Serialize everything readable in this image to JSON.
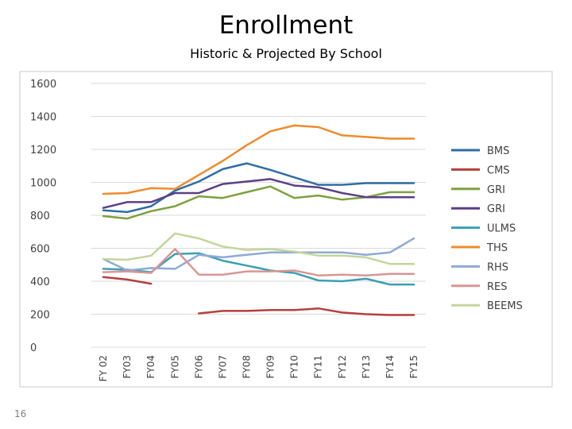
{
  "slide": {
    "title": "Enrollment",
    "subtitle": "Historic & Projected By School",
    "page_number": "16"
  },
  "chart_data": {
    "type": "line",
    "title": "",
    "xlabel": "",
    "ylabel": "",
    "ylim": [
      0,
      1600
    ],
    "yticks": [
      0,
      200,
      400,
      600,
      800,
      1000,
      1200,
      1400,
      1600
    ],
    "grid": true,
    "legend": "right",
    "categories": [
      "FY 02",
      "FY03",
      "FY04",
      "FY05",
      "FY06",
      "FY07",
      "FY08",
      "FY09",
      "FY10",
      "FY11",
      "FY12",
      "FY13",
      "FY14",
      "FY15"
    ],
    "series": [
      {
        "name": "BMS",
        "color": "#2e6da4",
        "values": [
          830,
          820,
          855,
          950,
          1005,
          1080,
          1115,
          1075,
          1030,
          985,
          985,
          995,
          995,
          995
        ]
      },
      {
        "name": "CMS",
        "color": "#b3403d",
        "values": [
          425,
          410,
          385,
          null,
          205,
          220,
          220,
          225,
          225,
          235,
          210,
          200,
          195,
          195
        ]
      },
      {
        "name": "GRI",
        "color": "#7ea13e",
        "values": [
          795,
          780,
          825,
          855,
          915,
          905,
          940,
          975,
          905,
          920,
          895,
          910,
          940,
          940
        ]
      },
      {
        "name": "GRI",
        "color": "#5c3f86",
        "values": [
          845,
          880,
          880,
          935,
          935,
          990,
          1005,
          1020,
          980,
          970,
          935,
          910,
          910,
          910
        ]
      },
      {
        "name": "ULMS",
        "color": "#3a9fb3",
        "values": [
          475,
          470,
          455,
          565,
          570,
          525,
          495,
          465,
          450,
          405,
          400,
          415,
          380,
          380
        ]
      },
      {
        "name": "THS",
        "color": "#f08a2c",
        "values": [
          930,
          935,
          965,
          960,
          1045,
          1130,
          1225,
          1310,
          1345,
          1335,
          1285,
          1275,
          1265,
          1265
        ]
      },
      {
        "name": "RHS",
        "color": "#8eaad5",
        "values": [
          535,
          465,
          480,
          475,
          560,
          545,
          560,
          575,
          575,
          575,
          575,
          560,
          575,
          660
        ]
      },
      {
        "name": "RES",
        "color": "#d99694",
        "values": [
          455,
          460,
          450,
          595,
          440,
          440,
          460,
          460,
          465,
          435,
          440,
          435,
          445,
          445
        ]
      },
      {
        "name": "BEEMS",
        "color": "#c3d69b",
        "values": [
          535,
          530,
          555,
          690,
          660,
          610,
          590,
          595,
          580,
          555,
          555,
          545,
          505,
          505
        ]
      }
    ]
  }
}
